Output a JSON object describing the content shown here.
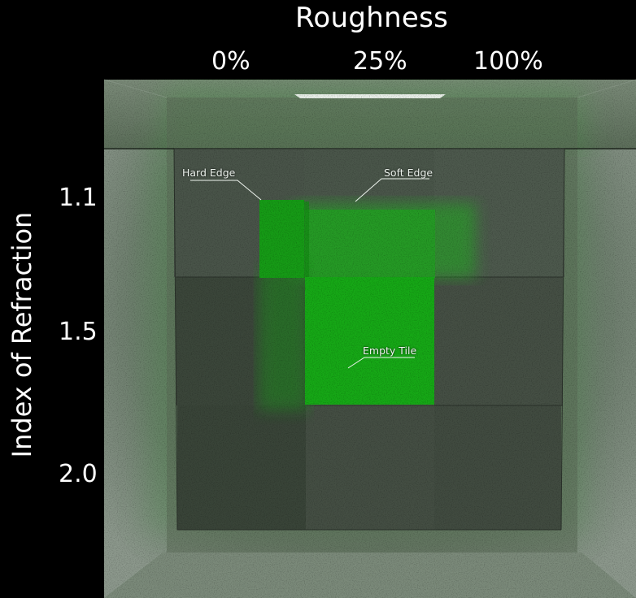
{
  "figure": {
    "column_title": "Roughness",
    "column_labels": [
      "0%",
      "25%",
      "100%"
    ],
    "row_title": "Index of Refraction",
    "row_labels": [
      "1.1",
      "1.5",
      "2.0"
    ],
    "callouts": {
      "hard_edge": "Hard Edge",
      "soft_edge": "Soft Edge",
      "empty_tile": "Empty Tile"
    }
  },
  "colors": {
    "background": "#000000",
    "room_wall": "#7c8a7c",
    "tile": "#3f4a3f",
    "green_glass": "#15a915",
    "bright_green": "#16b016"
  }
}
